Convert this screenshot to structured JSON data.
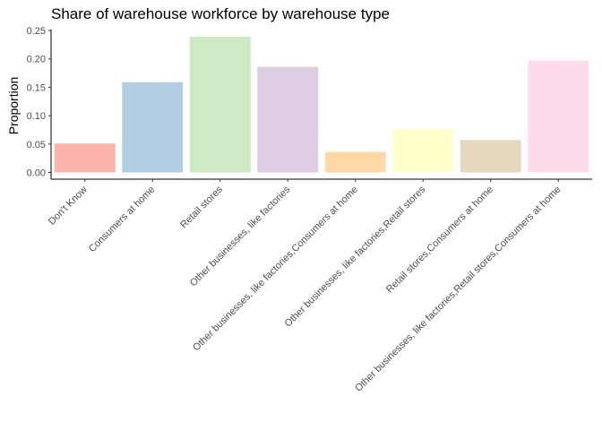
{
  "chart_data": {
    "type": "bar",
    "title": "Share of warehouse workforce by warehouse type",
    "xlabel": "",
    "ylabel": "Proportion",
    "ylim": [
      0,
      0.25
    ],
    "yticks": [
      "0.00",
      "0.05",
      "0.10",
      "0.15",
      "0.20",
      "0.25"
    ],
    "grid": false,
    "categories": [
      "Don't Know",
      "Consumers at home",
      "Retail stores",
      "Other businesses, like factories",
      "Other businesses, like factories,Consumers at home",
      "Other businesses, like factories,Retail stores",
      "Retail stores,Consumers at home",
      "Other businesses, like factories,Retail stores,Consumers at home"
    ],
    "values": [
      0.051,
      0.159,
      0.239,
      0.186,
      0.036,
      0.077,
      0.057,
      0.197
    ],
    "colors": [
      "#FBB4AE",
      "#B3CDE3",
      "#CCEBC5",
      "#DECBE4",
      "#FED9A6",
      "#FFFFCC",
      "#E5D8BD",
      "#FDDAEC"
    ]
  }
}
